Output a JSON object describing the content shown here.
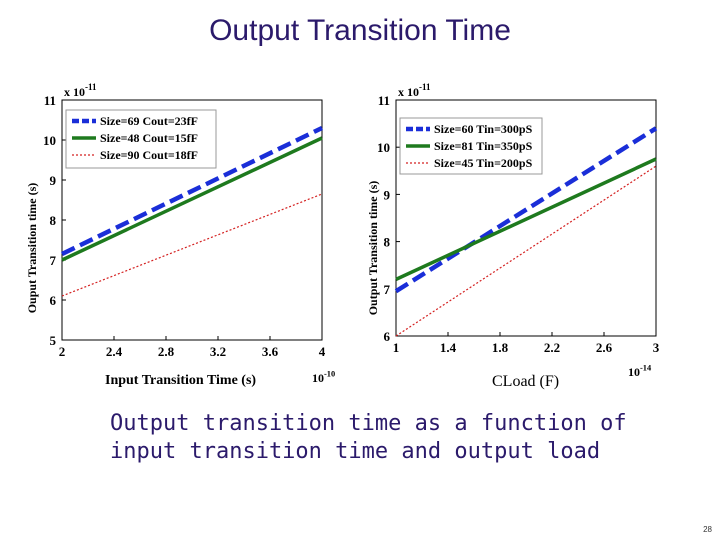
{
  "slide": {
    "title": "Output Transition Time",
    "caption_line1": "Output transition time as a function of",
    "caption_line2": "input transition time and output load",
    "page_number": "28"
  },
  "chart_data": [
    {
      "type": "line",
      "ylabel": "Ouput Transition time (s)",
      "xlabel": "Input Transition Time (s)",
      "x_exponent_label": "10-10",
      "y_multiplier_label": "x 10-11",
      "xlim": [
        2,
        4
      ],
      "ylim": [
        5,
        11
      ],
      "xticks": [
        "2",
        "2.4",
        "2.8",
        "3.2",
        "3.6",
        "4"
      ],
      "yticks": [
        "5",
        "6",
        "7",
        "8",
        "9",
        "10",
        "11"
      ],
      "legend_position": "top-left",
      "series": [
        {
          "name": "Size=69  Cout=23fF",
          "color": "#1a2ed8",
          "style": "dashed",
          "x": [
            2,
            4
          ],
          "y": [
            7.15,
            10.3
          ]
        },
        {
          "name": "Size=48  Cout=15fF",
          "color": "#1e7a1e",
          "style": "solid",
          "x": [
            2,
            4
          ],
          "y": [
            7.0,
            10.05
          ]
        },
        {
          "name": "Size=90  Cout=18fF",
          "color": "#d42020",
          "style": "dotted",
          "x": [
            2,
            4
          ],
          "y": [
            6.1,
            8.65
          ]
        }
      ]
    },
    {
      "type": "line",
      "ylabel": "Output Transition time (s)",
      "xlabel": "CLoad (F)",
      "x_exponent_label": "10-14",
      "y_multiplier_label": "x 10-11",
      "xlim": [
        1,
        3
      ],
      "ylim": [
        6,
        11
      ],
      "xticks": [
        "1",
        "1.4",
        "1.8",
        "2.2",
        "2.6",
        "3"
      ],
      "yticks": [
        "6",
        "7",
        "8",
        "9",
        "10",
        "11"
      ],
      "legend_position": "top-left",
      "series": [
        {
          "name": "Size=60  Tin=300pS",
          "color": "#1a2ed8",
          "style": "dashed",
          "x": [
            1,
            3
          ],
          "y": [
            6.95,
            10.4
          ]
        },
        {
          "name": "Size=81  Tin=350pS",
          "color": "#1e7a1e",
          "style": "solid",
          "x": [
            1,
            3
          ],
          "y": [
            7.2,
            9.75
          ]
        },
        {
          "name": "Size=45  Tin=200pS",
          "color": "#d42020",
          "style": "dotted",
          "x": [
            1,
            3
          ],
          "y": [
            6.0,
            9.6
          ]
        }
      ]
    }
  ]
}
